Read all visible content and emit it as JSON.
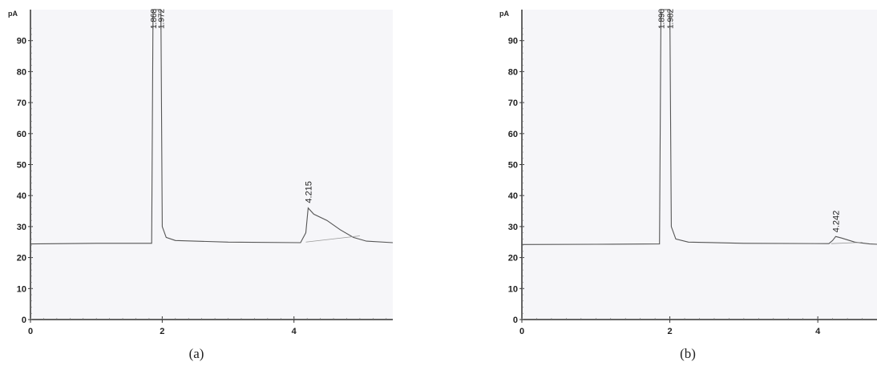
{
  "captions": {
    "a": "(a)",
    "b": "(b)"
  },
  "chart_data": [
    {
      "type": "line",
      "caption": "(a)",
      "y_unit": "pA",
      "xlim": [
        0,
        5.5
      ],
      "ylim": [
        0,
        100
      ],
      "x_ticks": [
        0,
        2,
        4
      ],
      "y_ticks": [
        0,
        10,
        20,
        30,
        40,
        50,
        60,
        70,
        80,
        90
      ],
      "baseline": 24.5,
      "peak_labels": [
        "1.868",
        "1.972",
        "4.215"
      ],
      "signal": [
        [
          0,
          24.4
        ],
        [
          1.0,
          24.6
        ],
        [
          1.84,
          24.6
        ],
        [
          1.86,
          100
        ],
        [
          1.98,
          100
        ],
        [
          2.0,
          30
        ],
        [
          2.06,
          26.5
        ],
        [
          2.2,
          25.5
        ],
        [
          3.0,
          25
        ],
        [
          4.1,
          24.8
        ],
        [
          4.18,
          28
        ],
        [
          4.215,
          36
        ],
        [
          4.3,
          34
        ],
        [
          4.5,
          32
        ],
        [
          4.7,
          29
        ],
        [
          4.9,
          26.5
        ],
        [
          5.1,
          25.3
        ],
        [
          5.5,
          24.8
        ]
      ],
      "integration_baseline": [
        [
          4.18,
          25
        ],
        [
          5.0,
          27
        ]
      ]
    },
    {
      "type": "line",
      "caption": "(b)",
      "y_unit": "pA",
      "xlim": [
        0,
        4.8
      ],
      "ylim": [
        0,
        100
      ],
      "x_ticks": [
        0,
        2,
        4
      ],
      "y_ticks": [
        0,
        10,
        20,
        30,
        40,
        50,
        60,
        70,
        80,
        90
      ],
      "baseline": 24.3,
      "peak_labels": [
        "1.890",
        "1.982"
      ],
      "peak_label_4": "4.242",
      "signal": [
        [
          0,
          24.2
        ],
        [
          1.0,
          24.3
        ],
        [
          1.86,
          24.4
        ],
        [
          1.88,
          100
        ],
        [
          2.0,
          100
        ],
        [
          2.02,
          30
        ],
        [
          2.08,
          26
        ],
        [
          2.25,
          25
        ],
        [
          3.0,
          24.6
        ],
        [
          4.15,
          24.5
        ],
        [
          4.2,
          25.5
        ],
        [
          4.242,
          26.8
        ],
        [
          4.32,
          26.3
        ],
        [
          4.5,
          25
        ],
        [
          4.7,
          24.4
        ],
        [
          4.8,
          24.3
        ]
      ],
      "integration_baseline": [
        [
          4.18,
          24.5
        ],
        [
          4.6,
          24.9
        ]
      ]
    }
  ]
}
